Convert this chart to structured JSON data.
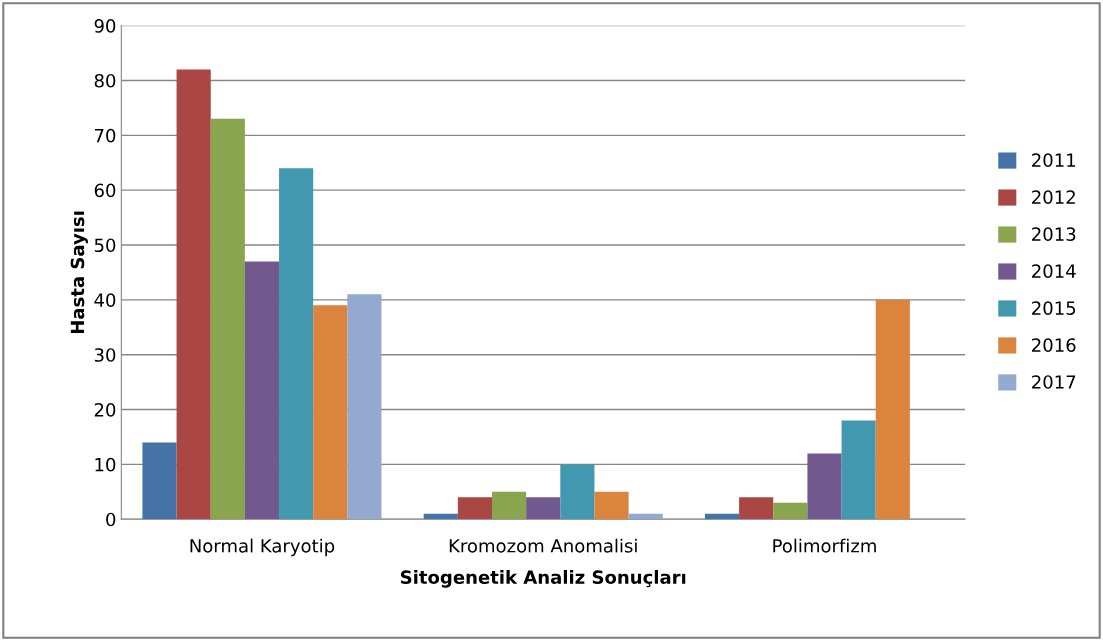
{
  "chart_data": {
    "type": "bar",
    "xlabel": "Sitogenetik Analiz Sonuçları",
    "ylabel": "Hasta Sayısı",
    "categories": [
      "Normal Karyotip",
      "Kromozom Anomalisi",
      "Polimorfizm"
    ],
    "series": [
      {
        "name": "2011",
        "color": "#4572a7",
        "values": [
          14,
          1,
          1
        ]
      },
      {
        "name": "2012",
        "color": "#aa4643",
        "values": [
          82,
          4,
          4
        ]
      },
      {
        "name": "2013",
        "color": "#89a54e",
        "values": [
          73,
          5,
          3
        ]
      },
      {
        "name": "2014",
        "color": "#71588f",
        "values": [
          47,
          4,
          12
        ]
      },
      {
        "name": "2015",
        "color": "#4198af",
        "values": [
          64,
          10,
          18
        ]
      },
      {
        "name": "2016",
        "color": "#db843d",
        "values": [
          39,
          5,
          40
        ]
      },
      {
        "name": "2017",
        "color": "#93a9cf",
        "values": [
          41,
          1,
          null
        ]
      }
    ],
    "ylim": [
      0,
      90
    ],
    "yticks": [
      0,
      10,
      20,
      30,
      40,
      50,
      60,
      70,
      80,
      90
    ],
    "grid": "y",
    "legend": "right"
  }
}
